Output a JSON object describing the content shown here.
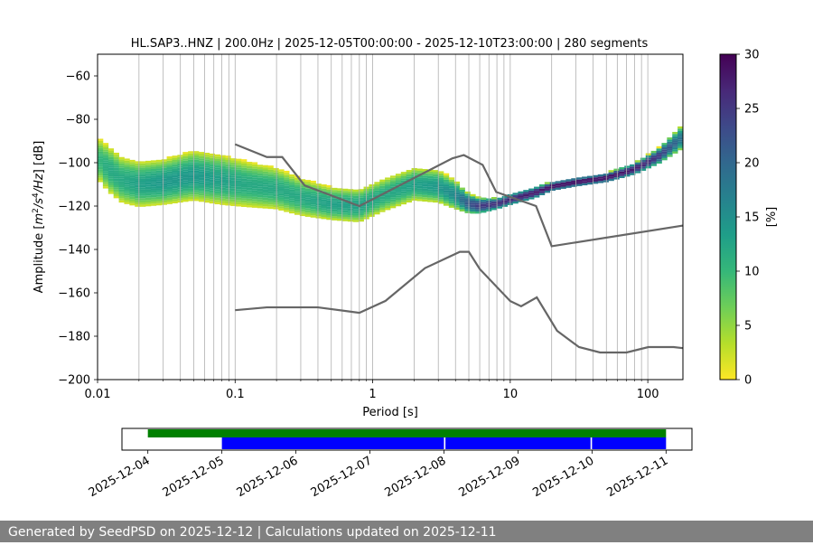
{
  "chart_data": [
    {
      "type": "heatmap",
      "title": "HL.SAP3..HNZ | 200.0Hz | 2025-12-05T00:00:00 - 2025-12-10T23:00:00 | 280 segments",
      "xlabel": "Period [s]",
      "ylabel_parts": [
        "Amplitude [",
        "m",
        "2",
        "/",
        "s",
        "4",
        "/",
        "Hz",
        "] [dB]"
      ],
      "x_scale": "log",
      "xlim": [
        0.01,
        180
      ],
      "ylim": [
        -200,
        -50
      ],
      "x_ticks": [
        0.01,
        0.1,
        1,
        10,
        100
      ],
      "x_tick_labels": [
        "0.01",
        "0.1",
        "1",
        "10",
        "100"
      ],
      "y_ticks": [
        -200,
        -180,
        -160,
        -140,
        -120,
        -100,
        -80,
        -60
      ],
      "y_tick_labels": [
        "−200",
        "−180",
        "−160",
        "−140",
        "−120",
        "−100",
        "−80",
        "−60"
      ],
      "grid": "vertical log-period lines",
      "colorbar": {
        "label": "[%]",
        "range": [
          0,
          30
        ],
        "ticks": [
          0,
          5,
          10,
          15,
          20,
          25,
          30
        ],
        "colormap": "viridis_r",
        "colors": [
          "#fde725",
          "#b5de2b",
          "#6ece58",
          "#35b779",
          "#1f9e89",
          "#26828e",
          "#31688e",
          "#3e4989",
          "#482878",
          "#440154"
        ]
      },
      "density_bands": [
        {
          "period": [
            0.01,
            0.012,
            0.015,
            0.02,
            0.03,
            0.05,
            0.08,
            0.12,
            0.2,
            0.3,
            0.5,
            0.8,
            1.2,
            2,
            3,
            4,
            5,
            6,
            8,
            10,
            15,
            20,
            30,
            50,
            80,
            120,
            180
          ],
          "center_db": [
            -98,
            -103,
            -108,
            -110,
            -109,
            -106,
            -108,
            -110,
            -112,
            -116,
            -119,
            -120,
            -115,
            -110,
            -111,
            -115,
            -119,
            -120,
            -119,
            -117,
            -114,
            -111,
            -109,
            -107,
            -103,
            -97,
            -88
          ],
          "half_width_db": [
            10,
            11,
            11,
            11,
            11,
            12,
            12,
            11,
            10,
            9,
            8,
            8,
            8,
            8,
            8,
            7,
            5,
            4,
            3,
            3,
            3,
            2.5,
            2.5,
            2.5,
            3,
            4,
            6
          ],
          "peak_percent": [
            10,
            12,
            12,
            13,
            14,
            14,
            13,
            12,
            12,
            12,
            13,
            13,
            12,
            13,
            14,
            16,
            22,
            25,
            26,
            27,
            28,
            29,
            29,
            29,
            28,
            25,
            18
          ]
        }
      ],
      "noise_models": [
        {
          "name": "upper",
          "period": [
            0.1,
            0.17,
            0.22,
            0.32,
            0.8,
            3.8,
            4.6,
            6.3,
            7.9,
            15.4,
            20,
            180
          ],
          "db": [
            -91.5,
            -97.4,
            -97.4,
            -110.5,
            -120,
            -98,
            -96.5,
            -101,
            -113.5,
            -120,
            -138.5,
            -129
          ]
        },
        {
          "name": "lower",
          "period": [
            0.1,
            0.17,
            0.4,
            0.8,
            1.24,
            2.4,
            4.3,
            5.0,
            6.0,
            10,
            12,
            15.6,
            21.9,
            31.6,
            45,
            70,
            101,
            154,
            180
          ],
          "db": [
            -168,
            -166.7,
            -166.7,
            -169.2,
            -163.7,
            -148.6,
            -141.1,
            -141.1,
            -149,
            -163.8,
            -166.2,
            -162.1,
            -177.5,
            -185,
            -187.5,
            -187.5,
            -185,
            -185,
            -185.5
          ]
        }
      ]
    },
    {
      "type": "timeline",
      "x_tick_labels": [
        "2025-12-04",
        "2025-12-05",
        "2025-12-06",
        "2025-12-07",
        "2025-12-08",
        "2025-12-09",
        "2025-12-10",
        "2025-12-11"
      ],
      "xlim_days": [
        -0.35,
        7.35
      ],
      "x_ticks_days": [
        0,
        1,
        2,
        3,
        4,
        5,
        6,
        7
      ],
      "series": [
        {
          "color": "#008000",
          "segments": [
            [
              0,
              7
            ]
          ]
        },
        {
          "color": "#0000ff",
          "segments": [
            [
              1,
              4.0
            ],
            [
              4.02,
              5.98
            ],
            [
              6.0,
              7
            ]
          ]
        }
      ]
    }
  ],
  "footer": "Generated by SeedPSD on 2025-12-12 | Calculations updated on 2025-12-11"
}
